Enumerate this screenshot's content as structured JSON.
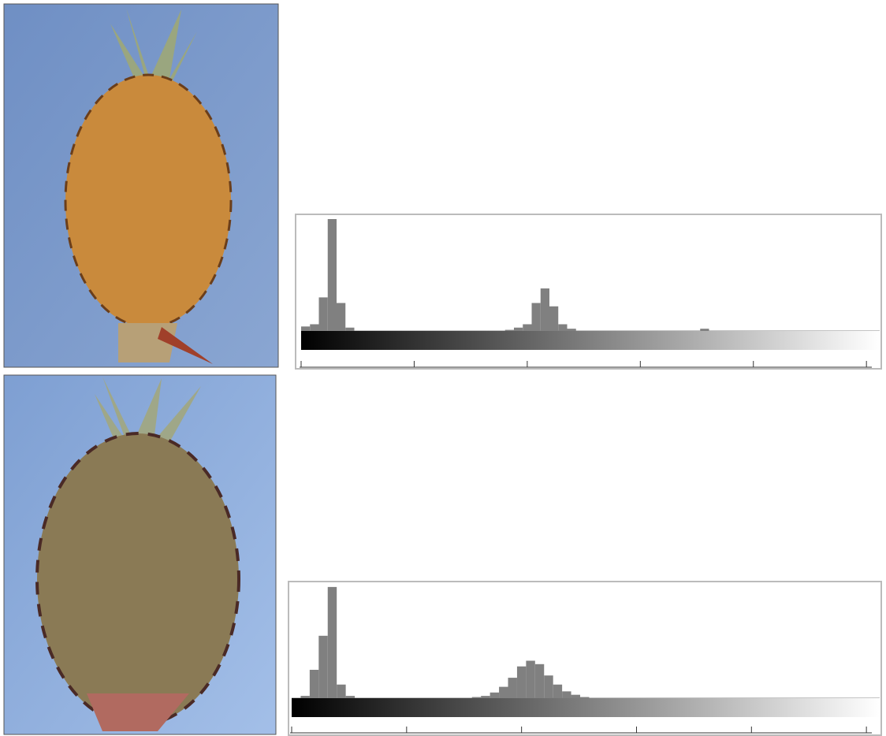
{
  "chart_data": [
    {
      "type": "histogram",
      "color": "#808080",
      "bins": [
        0,
        4,
        8,
        12,
        16,
        20,
        24,
        28,
        32,
        36,
        40,
        44,
        48,
        52,
        56,
        60,
        64,
        68,
        72,
        76,
        80,
        84,
        88,
        92,
        96,
        100,
        104,
        108,
        112,
        116,
        120,
        124,
        128,
        132,
        136,
        140,
        144,
        148,
        152,
        156,
        160,
        164,
        168,
        172,
        176,
        180,
        184,
        188,
        192,
        196,
        200,
        204,
        208,
        212,
        216,
        220,
        224,
        228,
        232,
        236,
        240,
        244,
        248,
        252,
        256
      ],
      "values": [
        4,
        6,
        30,
        100,
        25,
        3,
        0,
        0,
        0,
        0,
        0,
        0,
        0,
        0,
        0,
        0,
        0,
        0,
        0,
        0,
        0,
        0,
        0,
        1,
        3,
        6,
        25,
        38,
        22,
        6,
        2,
        0,
        0,
        0,
        0,
        0,
        0,
        0,
        0,
        0,
        0,
        0,
        0,
        0,
        0,
        2,
        0,
        0,
        0,
        0,
        0,
        0,
        0,
        0,
        0,
        0,
        0,
        0,
        0,
        0,
        0,
        0,
        0,
        0
      ],
      "xlim": [
        0,
        256
      ],
      "xticks": [
        0,
        51,
        102,
        153,
        204,
        255
      ],
      "ylim": [
        0,
        100
      ]
    },
    {
      "type": "histogram",
      "color": "#808080",
      "bins": [
        0,
        4,
        8,
        12,
        16,
        20,
        24,
        28,
        32,
        36,
        40,
        44,
        48,
        52,
        56,
        60,
        64,
        68,
        72,
        76,
        80,
        84,
        88,
        92,
        96,
        100,
        104,
        108,
        112,
        116,
        120,
        124,
        128,
        132,
        136,
        140,
        144,
        148,
        152,
        156,
        160,
        164,
        168,
        172,
        176,
        180,
        184,
        188,
        192,
        196,
        200,
        204,
        208,
        212,
        216,
        220,
        224,
        228,
        232,
        236,
        240,
        244,
        248,
        252,
        256
      ],
      "values": [
        0,
        2,
        25,
        55,
        98,
        12,
        2,
        0,
        0,
        0,
        0,
        0,
        0,
        0,
        0,
        0,
        0,
        0,
        0,
        0,
        1,
        2,
        5,
        10,
        18,
        28,
        33,
        30,
        20,
        12,
        6,
        3,
        1,
        0,
        0,
        0,
        0,
        0,
        0,
        0,
        0,
        0,
        0,
        0,
        0,
        0,
        0,
        0,
        0,
        0,
        0,
        0,
        0,
        0,
        0,
        0,
        0,
        0,
        0,
        0,
        0,
        0,
        0,
        0
      ],
      "xlim": [
        0,
        256
      ],
      "xticks": [
        0,
        51,
        102,
        153,
        204,
        255
      ],
      "ylim": [
        0,
        100
      ]
    }
  ]
}
